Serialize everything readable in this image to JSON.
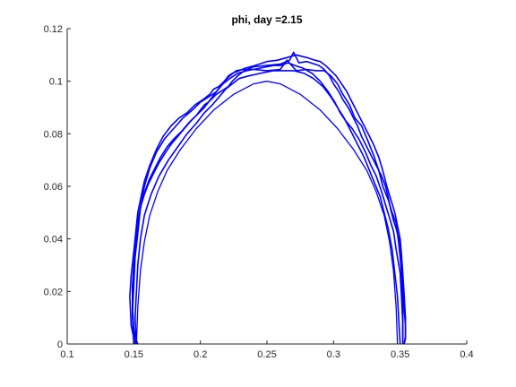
{
  "chart_data": {
    "type": "line",
    "title": "phi, day =2.15",
    "xlabel": "",
    "ylabel": "",
    "xlim": [
      0.1,
      0.4
    ],
    "ylim": [
      0,
      0.12
    ],
    "x_ticks": [
      0.1,
      0.15,
      0.2,
      0.25,
      0.3,
      0.35,
      0.4
    ],
    "x_tick_labels": [
      "0.1",
      "0.15",
      "0.2",
      "0.25",
      "0.3",
      "0.35",
      "0.4"
    ],
    "y_ticks": [
      0,
      0.02,
      0.04,
      0.06,
      0.08,
      0.1,
      0.12
    ],
    "y_tick_labels": [
      "0",
      "0.02",
      "0.04",
      "0.06",
      "0.08",
      "0.1",
      "0.12"
    ],
    "grid": false,
    "line_color": "#0000ff",
    "axis_color": "#262626",
    "series": [
      {
        "shape": "semi-ellipse",
        "x": [
          0.152,
          0.153,
          0.155,
          0.158,
          0.162,
          0.168,
          0.175,
          0.185,
          0.197,
          0.21,
          0.225,
          0.24,
          0.25,
          0.26,
          0.275,
          0.29,
          0.303,
          0.315,
          0.325,
          0.332,
          0.338,
          0.342,
          0.345,
          0.347,
          0.348
        ],
        "y": [
          0.0,
          0.014,
          0.028,
          0.039,
          0.049,
          0.058,
          0.066,
          0.074,
          0.082,
          0.089,
          0.095,
          0.099,
          0.1,
          0.099,
          0.095,
          0.089,
          0.082,
          0.074,
          0.066,
          0.058,
          0.049,
          0.039,
          0.028,
          0.014,
          0.0
        ]
      },
      {
        "shape": "rough-contour",
        "x": [
          0.151,
          0.148,
          0.147,
          0.148,
          0.15,
          0.152,
          0.153,
          0.155,
          0.158,
          0.162,
          0.167,
          0.172,
          0.178,
          0.184,
          0.19,
          0.196,
          0.202,
          0.207,
          0.21,
          0.214,
          0.218,
          0.222,
          0.227,
          0.232,
          0.24,
          0.25,
          0.26,
          0.265,
          0.272,
          0.28,
          0.287,
          0.293,
          0.298,
          0.303,
          0.307,
          0.312,
          0.316,
          0.321,
          0.326,
          0.33,
          0.334,
          0.337,
          0.341,
          0.344,
          0.347,
          0.349,
          0.351,
          0.352,
          0.352
        ],
        "y": [
          0.0,
          0.007,
          0.018,
          0.026,
          0.035,
          0.045,
          0.05,
          0.055,
          0.062,
          0.068,
          0.074,
          0.079,
          0.083,
          0.086,
          0.088,
          0.091,
          0.093,
          0.095,
          0.097,
          0.098,
          0.1,
          0.102,
          0.104,
          0.1045,
          0.1045,
          0.104,
          0.1045,
          0.108,
          0.104,
          0.1045,
          0.104,
          0.104,
          0.102,
          0.099,
          0.095,
          0.091,
          0.086,
          0.083,
          0.077,
          0.072,
          0.066,
          0.06,
          0.055,
          0.05,
          0.046,
          0.038,
          0.028,
          0.014,
          0.002
        ]
      },
      {
        "shape": "rough-contour",
        "x": [
          0.15,
          0.149,
          0.15,
          0.151,
          0.153,
          0.155,
          0.158,
          0.162,
          0.167,
          0.173,
          0.18,
          0.187,
          0.194,
          0.2,
          0.206,
          0.212,
          0.217,
          0.222,
          0.228,
          0.235,
          0.245,
          0.255,
          0.26,
          0.266,
          0.271,
          0.277,
          0.284,
          0.29,
          0.296,
          0.301,
          0.305,
          0.309,
          0.314,
          0.319,
          0.324,
          0.328,
          0.332,
          0.336,
          0.339,
          0.342,
          0.345,
          0.347,
          0.35,
          0.351,
          0.352,
          0.352
        ],
        "y": [
          0.0,
          0.011,
          0.022,
          0.033,
          0.042,
          0.052,
          0.06,
          0.067,
          0.073,
          0.078,
          0.082,
          0.086,
          0.089,
          0.092,
          0.094,
          0.096,
          0.099,
          0.101,
          0.103,
          0.104,
          0.105,
          0.106,
          0.106,
          0.107,
          0.106,
          0.105,
          0.103,
          0.1,
          0.096,
          0.092,
          0.088,
          0.085,
          0.082,
          0.078,
          0.073,
          0.068,
          0.064,
          0.058,
          0.053,
          0.048,
          0.043,
          0.036,
          0.027,
          0.018,
          0.008,
          0.0
        ]
      },
      {
        "shape": "rough-contour",
        "x": [
          0.152,
          0.151,
          0.152,
          0.153,
          0.155,
          0.158,
          0.163,
          0.169,
          0.176,
          0.183,
          0.19,
          0.197,
          0.203,
          0.209,
          0.214,
          0.219,
          0.224,
          0.229,
          0.236,
          0.245,
          0.255,
          0.262,
          0.27,
          0.278,
          0.285,
          0.292,
          0.298,
          0.303,
          0.308,
          0.313,
          0.318,
          0.323,
          0.327,
          0.331,
          0.335,
          0.338,
          0.341,
          0.344,
          0.346,
          0.348,
          0.349,
          0.35
        ],
        "y": [
          0.0,
          0.01,
          0.02,
          0.03,
          0.04,
          0.049,
          0.057,
          0.064,
          0.07,
          0.075,
          0.08,
          0.084,
          0.088,
          0.091,
          0.094,
          0.097,
          0.099,
          0.101,
          0.102,
          0.103,
          0.104,
          0.104,
          0.104,
          0.103,
          0.101,
          0.098,
          0.094,
          0.09,
          0.086,
          0.081,
          0.076,
          0.071,
          0.066,
          0.061,
          0.056,
          0.05,
          0.044,
          0.036,
          0.027,
          0.018,
          0.009,
          0.0
        ]
      },
      {
        "shape": "rough-contour",
        "x": [
          0.153,
          0.15,
          0.149,
          0.149,
          0.15,
          0.151,
          0.152,
          0.153,
          0.155,
          0.158,
          0.161,
          0.165,
          0.169,
          0.174,
          0.178,
          0.183,
          0.188,
          0.193,
          0.197,
          0.2,
          0.203,
          0.206,
          0.208,
          0.21,
          0.212,
          0.215,
          0.218,
          0.221,
          0.224,
          0.228,
          0.233,
          0.24,
          0.25,
          0.26,
          0.267,
          0.27,
          0.274,
          0.28,
          0.289,
          0.293,
          0.297,
          0.3,
          0.304,
          0.307,
          0.311,
          0.314,
          0.318,
          0.321,
          0.325,
          0.329,
          0.333,
          0.336,
          0.339,
          0.341,
          0.343,
          0.345,
          0.347,
          0.349,
          0.35,
          0.351,
          0.352,
          0.353,
          0.354,
          0.354,
          0.353
        ],
        "y": [
          0.0,
          0.004,
          0.012,
          0.02,
          0.028,
          0.035,
          0.042,
          0.047,
          0.052,
          0.057,
          0.061,
          0.065,
          0.069,
          0.073,
          0.076,
          0.079,
          0.082,
          0.085,
          0.087,
          0.089,
          0.091,
          0.092,
          0.093,
          0.094,
          0.095,
          0.096,
          0.097,
          0.098,
          0.1,
          0.102,
          0.104,
          0.1055,
          0.106,
          0.1065,
          0.108,
          0.111,
          0.107,
          0.1075,
          0.106,
          0.1045,
          0.102,
          0.099,
          0.096,
          0.093,
          0.09,
          0.087,
          0.083,
          0.079,
          0.075,
          0.071,
          0.067,
          0.064,
          0.06,
          0.056,
          0.051,
          0.047,
          0.044,
          0.04,
          0.034,
          0.027,
          0.02,
          0.013,
          0.007,
          0.002,
          0.0
        ]
      },
      {
        "shape": "rough-contour",
        "x": [
          0.152,
          0.15,
          0.149,
          0.149,
          0.15,
          0.151,
          0.152,
          0.154,
          0.156,
          0.159,
          0.162,
          0.166,
          0.17,
          0.175,
          0.18,
          0.186,
          0.191,
          0.195,
          0.199,
          0.203,
          0.206,
          0.209,
          0.212,
          0.215,
          0.218,
          0.221,
          0.224,
          0.229,
          0.234,
          0.241,
          0.25,
          0.258,
          0.265,
          0.272,
          0.28,
          0.286,
          0.29,
          0.294,
          0.298,
          0.302,
          0.306,
          0.31,
          0.314,
          0.318,
          0.322,
          0.326,
          0.33,
          0.334,
          0.337,
          0.34,
          0.343,
          0.346,
          0.348,
          0.35,
          0.351,
          0.352,
          0.353,
          0.354,
          0.354,
          0.353
        ],
        "y": [
          0.0,
          0.006,
          0.014,
          0.022,
          0.03,
          0.037,
          0.043,
          0.049,
          0.054,
          0.059,
          0.063,
          0.067,
          0.071,
          0.075,
          0.078,
          0.081,
          0.084,
          0.086,
          0.088,
          0.09,
          0.092,
          0.094,
          0.096,
          0.098,
          0.1,
          0.102,
          0.103,
          0.104,
          0.105,
          0.106,
          0.1075,
          0.108,
          0.109,
          0.11,
          0.109,
          0.108,
          0.1075,
          0.106,
          0.104,
          0.102,
          0.099,
          0.096,
          0.092,
          0.088,
          0.084,
          0.08,
          0.076,
          0.071,
          0.066,
          0.06,
          0.055,
          0.05,
          0.045,
          0.04,
          0.034,
          0.027,
          0.019,
          0.01,
          0.003,
          0.0
        ]
      }
    ]
  }
}
